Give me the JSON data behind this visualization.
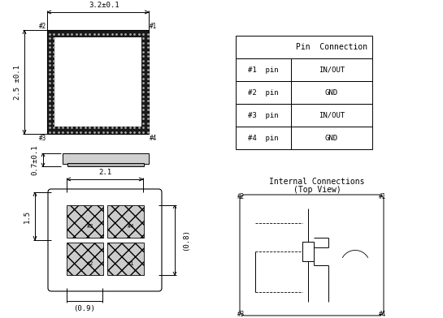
{
  "bg_color": "#ffffff",
  "table_header": "Pin  Connection",
  "table_rows": [
    [
      "#1  pin",
      "IN/OUT"
    ],
    [
      "#2  pin",
      "GND"
    ],
    [
      "#3  pin",
      "IN/OUT"
    ],
    [
      "#4  pin",
      "GND"
    ]
  ],
  "dim_top": "3.2±0.1",
  "dim_left": "2.5 ±0.1",
  "dim_height": "0.7±0.1",
  "dim_bottom_w": "2.1",
  "dim_bottom_h": "(0.8)",
  "dim_bottom_side": "1.5",
  "dim_bottom_x": "(0.9)",
  "internal_title1": "Internal Connections",
  "internal_title2": "(Top View)",
  "font_size": 6.5,
  "line_color": "#000000"
}
